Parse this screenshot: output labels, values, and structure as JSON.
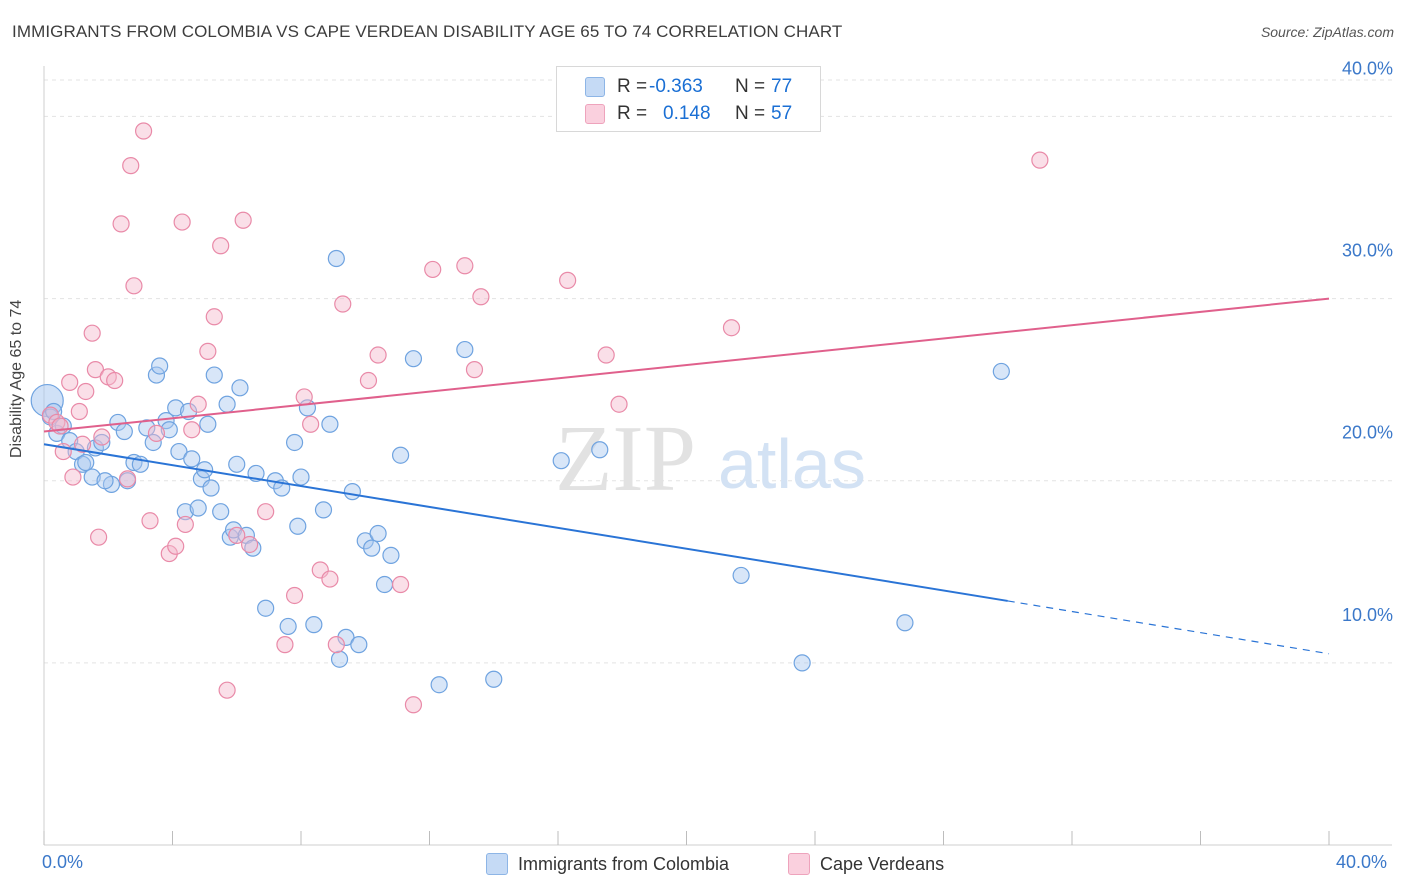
{
  "title": "IMMIGRANTS FROM COLOMBIA VS CAPE VERDEAN DISABILITY AGE 65 TO 74 CORRELATION CHART",
  "source": "Source: ZipAtlas.com",
  "watermark": {
    "zip": "ZIP",
    "atlas": "atlas"
  },
  "stats": [
    {
      "r_label": "R =",
      "r_value": "-0.363",
      "n_label": "N =",
      "n_value": "77",
      "color": "#a9c8f0"
    },
    {
      "r_label": "R =",
      "r_value": "0.148",
      "n_label": "N =",
      "n_value": "57",
      "color": "#f5b8cb"
    }
  ],
  "legend": [
    {
      "label": "Immigrants from Colombia",
      "color": "#a9c8f0"
    },
    {
      "label": "Cape Verdeans",
      "color": "#f5b8cb"
    }
  ],
  "chart_data": {
    "type": "scatter",
    "ylabel": "Disability Age 65 to 74",
    "xlim": [
      0,
      40
    ],
    "ylim": [
      0,
      42
    ],
    "x_tick_labels": [
      "0.0%",
      "40.0%"
    ],
    "y_ticks": [
      10,
      20,
      30,
      40
    ],
    "y_tick_labels": [
      "10.0%",
      "20.0%",
      "30.0%",
      "40.0%"
    ],
    "grid": true,
    "series": [
      {
        "name": "Immigrants from Colombia",
        "color": "#6fa3e0",
        "fill": "#a9c8f0",
        "trend_color": "#2a74d6",
        "trend": {
          "x0": 0,
          "y0": 22.0,
          "x1": 30.0,
          "y1": 13.4,
          "dash_to_x": 40,
          "dash_to_y": 10.5
        },
        "points": [
          [
            0.1,
            24.4
          ],
          [
            0.2,
            23.5
          ],
          [
            0.4,
            22.6
          ],
          [
            0.6,
            23.0
          ],
          [
            0.8,
            22.2
          ],
          [
            1.0,
            21.6
          ],
          [
            1.2,
            20.9
          ],
          [
            1.5,
            20.2
          ],
          [
            1.6,
            21.8
          ],
          [
            1.8,
            22.1
          ],
          [
            2.1,
            19.8
          ],
          [
            2.3,
            23.2
          ],
          [
            2.5,
            22.7
          ],
          [
            2.6,
            20.0
          ],
          [
            2.8,
            21.0
          ],
          [
            3.0,
            20.9
          ],
          [
            3.2,
            22.9
          ],
          [
            3.4,
            22.1
          ],
          [
            3.5,
            25.8
          ],
          [
            3.6,
            26.3
          ],
          [
            3.8,
            23.3
          ],
          [
            3.9,
            22.8
          ],
          [
            4.1,
            24.0
          ],
          [
            4.2,
            21.6
          ],
          [
            4.4,
            18.3
          ],
          [
            4.5,
            23.8
          ],
          [
            4.6,
            21.2
          ],
          [
            4.8,
            18.5
          ],
          [
            4.9,
            20.1
          ],
          [
            5.0,
            20.6
          ],
          [
            5.1,
            23.1
          ],
          [
            5.2,
            19.6
          ],
          [
            5.3,
            25.8
          ],
          [
            5.5,
            18.3
          ],
          [
            5.7,
            24.2
          ],
          [
            5.8,
            16.9
          ],
          [
            5.9,
            17.3
          ],
          [
            6.0,
            20.9
          ],
          [
            6.1,
            25.1
          ],
          [
            6.3,
            17.0
          ],
          [
            6.5,
            16.3
          ],
          [
            6.6,
            20.4
          ],
          [
            6.9,
            13.0
          ],
          [
            7.2,
            20.0
          ],
          [
            7.4,
            19.6
          ],
          [
            7.6,
            12.0
          ],
          [
            7.8,
            22.1
          ],
          [
            7.9,
            17.5
          ],
          [
            8.0,
            20.2
          ],
          [
            8.2,
            24.0
          ],
          [
            8.4,
            12.1
          ],
          [
            8.7,
            18.4
          ],
          [
            8.9,
            23.1
          ],
          [
            9.1,
            32.2
          ],
          [
            9.2,
            10.2
          ],
          [
            9.4,
            11.4
          ],
          [
            9.6,
            19.4
          ],
          [
            9.8,
            11.0
          ],
          [
            10.0,
            16.7
          ],
          [
            10.2,
            16.3
          ],
          [
            10.4,
            17.1
          ],
          [
            10.6,
            14.3
          ],
          [
            10.8,
            15.9
          ],
          [
            11.1,
            21.4
          ],
          [
            11.5,
            26.7
          ],
          [
            12.3,
            8.8
          ],
          [
            13.1,
            27.2
          ],
          [
            14.0,
            9.1
          ],
          [
            16.1,
            21.1
          ],
          [
            17.3,
            21.7
          ],
          [
            21.7,
            14.8
          ],
          [
            23.6,
            10.0
          ],
          [
            26.8,
            12.2
          ],
          [
            29.8,
            26.0
          ],
          [
            1.3,
            21.0
          ],
          [
            1.9,
            20.0
          ],
          [
            0.3,
            23.8
          ]
        ]
      },
      {
        "name": "Cape Verdeans",
        "color": "#e98aa8",
        "fill": "#f5b8cb",
        "trend_color": "#e0608c",
        "trend": {
          "x0": 0,
          "y0": 22.7,
          "x1": 40,
          "y1": 30.0
        },
        "points": [
          [
            0.2,
            23.6
          ],
          [
            0.4,
            23.2
          ],
          [
            0.6,
            21.6
          ],
          [
            0.8,
            25.4
          ],
          [
            0.9,
            20.2
          ],
          [
            1.1,
            23.8
          ],
          [
            1.3,
            24.9
          ],
          [
            1.5,
            28.1
          ],
          [
            1.6,
            26.1
          ],
          [
            1.7,
            16.9
          ],
          [
            1.8,
            22.4
          ],
          [
            2.0,
            25.7
          ],
          [
            2.2,
            25.5
          ],
          [
            2.4,
            34.1
          ],
          [
            2.6,
            20.1
          ],
          [
            2.7,
            37.3
          ],
          [
            2.8,
            30.7
          ],
          [
            3.1,
            39.2
          ],
          [
            3.3,
            17.8
          ],
          [
            3.5,
            22.6
          ],
          [
            3.9,
            16.0
          ],
          [
            4.1,
            16.4
          ],
          [
            4.3,
            34.2
          ],
          [
            4.4,
            17.6
          ],
          [
            4.6,
            22.8
          ],
          [
            4.8,
            24.2
          ],
          [
            5.1,
            27.1
          ],
          [
            5.3,
            29.0
          ],
          [
            5.5,
            32.9
          ],
          [
            5.7,
            8.5
          ],
          [
            6.0,
            17.0
          ],
          [
            6.2,
            34.3
          ],
          [
            6.4,
            16.5
          ],
          [
            6.9,
            18.3
          ],
          [
            7.5,
            11.0
          ],
          [
            7.8,
            13.7
          ],
          [
            8.1,
            24.6
          ],
          [
            8.3,
            23.1
          ],
          [
            8.6,
            15.1
          ],
          [
            8.9,
            14.6
          ],
          [
            9.1,
            11.0
          ],
          [
            9.3,
            29.7
          ],
          [
            10.1,
            25.5
          ],
          [
            10.4,
            26.9
          ],
          [
            11.1,
            14.3
          ],
          [
            11.5,
            7.7
          ],
          [
            12.1,
            31.6
          ],
          [
            13.1,
            31.8
          ],
          [
            13.4,
            26.1
          ],
          [
            13.6,
            30.1
          ],
          [
            16.3,
            31.0
          ],
          [
            17.5,
            26.9
          ],
          [
            17.9,
            24.2
          ],
          [
            21.4,
            28.4
          ],
          [
            31.0,
            37.6
          ],
          [
            0.5,
            23.0
          ],
          [
            1.2,
            22.0
          ]
        ]
      }
    ]
  }
}
